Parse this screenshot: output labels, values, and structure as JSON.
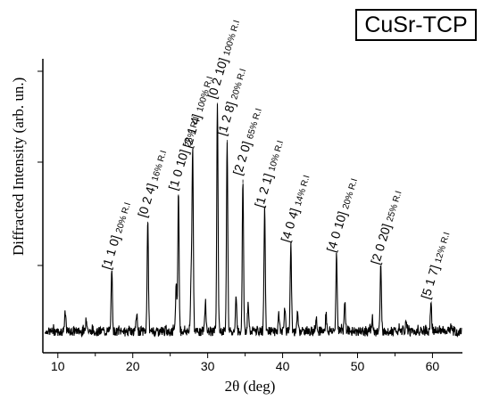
{
  "chart_data": {
    "type": "line",
    "title": "",
    "legend": "CuSr-TCP",
    "xlabel": "2θ (deg)",
    "ylabel": "Diffracted Intensity (arb. un.)",
    "xlim": [
      8,
      64
    ],
    "ylim": [
      0,
      1
    ],
    "grid": false,
    "legend_position": "top-right",
    "xticks": [
      10,
      20,
      30,
      40,
      50,
      60
    ],
    "line_color": "#000000",
    "peaks": [
      {
        "x": 11.0,
        "y": 0.07
      },
      {
        "x": 13.8,
        "y": 0.06
      },
      {
        "x": 17.2,
        "y": 0.24,
        "label": "[1 1 0]",
        "ri": "20% R.I"
      },
      {
        "x": 20.5,
        "y": 0.07
      },
      {
        "x": 22.0,
        "y": 0.45,
        "label": "[0 2 4]",
        "ri": "16% R.I"
      },
      {
        "x": 25.8,
        "y": 0.2
      },
      {
        "x": 26.1,
        "y": 0.56,
        "label": "[1 0 10]",
        "ri": "25% R.I"
      },
      {
        "x": 27.8,
        "y": 0.23
      },
      {
        "x": 28.0,
        "y": 0.73,
        "label": "[2 1 4]",
        "ri": "100% R.I"
      },
      {
        "x": 29.7,
        "y": 0.12
      },
      {
        "x": 31.3,
        "y": 0.93,
        "label": "[0 2 10]",
        "ri": "100% R.I"
      },
      {
        "x": 32.6,
        "y": 0.78,
        "label": "[1 2 8]",
        "ri": "20% R.I"
      },
      {
        "x": 33.8,
        "y": 0.13
      },
      {
        "x": 34.7,
        "y": 0.62,
        "label": "[2 2 0]",
        "ri": "65% R.I"
      },
      {
        "x": 35.4,
        "y": 0.1
      },
      {
        "x": 37.6,
        "y": 0.49,
        "label": "[1 2 1]",
        "ri": "10% R.I"
      },
      {
        "x": 39.5,
        "y": 0.07
      },
      {
        "x": 40.3,
        "y": 0.1
      },
      {
        "x": 41.1,
        "y": 0.35,
        "label": "[4 0 4]",
        "ri": "14% R.I"
      },
      {
        "x": 42.0,
        "y": 0.07
      },
      {
        "x": 44.5,
        "y": 0.06
      },
      {
        "x": 45.8,
        "y": 0.07
      },
      {
        "x": 47.2,
        "y": 0.31,
        "label": "[4 0 10]",
        "ri": "20% R.I"
      },
      {
        "x": 48.3,
        "y": 0.13
      },
      {
        "x": 52.0,
        "y": 0.05
      },
      {
        "x": 53.1,
        "y": 0.26,
        "label": "[2 0 20]",
        "ri": "25% R.I"
      },
      {
        "x": 56.5,
        "y": 0.04
      },
      {
        "x": 59.8,
        "y": 0.12,
        "label": "[5 1 7]",
        "ri": "12% R.I"
      },
      {
        "x": 62.5,
        "y": 0.03
      }
    ]
  }
}
